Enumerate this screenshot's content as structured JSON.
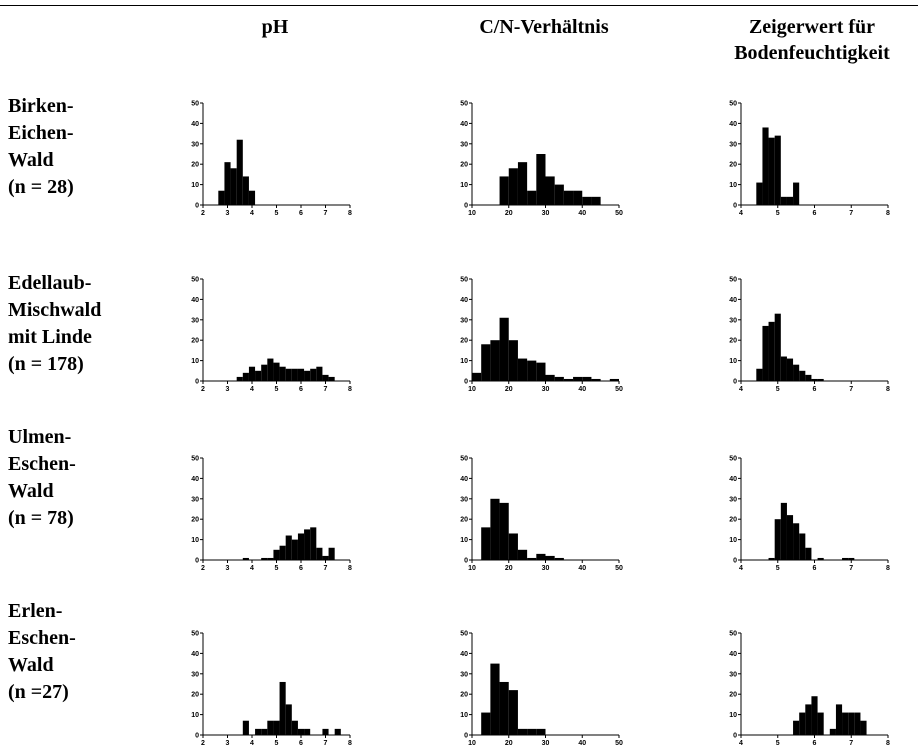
{
  "column_headers": [
    [
      "pH"
    ],
    [
      "C/N-Verhältnis"
    ],
    [
      "Zeigerwert für",
      "Bodenfeuchtigkeit"
    ]
  ],
  "row_labels": [
    [
      "Birken-",
      "Eichen-",
      "Wald",
      "(n = 28)"
    ],
    [
      "Edellaub-",
      "Mischwald",
      "mit Linde",
      "(n = 178)"
    ],
    [
      "Ulmen-",
      "Eschen-",
      "Wald",
      "(n = 78)"
    ],
    [
      "Erlen-",
      "Eschen-",
      "Wald",
      "(n =27)"
    ]
  ],
  "chart_data": [
    {
      "type": "bar",
      "title": "",
      "xlabel": "pH",
      "ylabel": "",
      "forest": "Birken-Eichen-Wald (n = 28)",
      "xlim": [
        2,
        8
      ],
      "ylim": [
        0,
        50
      ],
      "xticks": [
        "2",
        "3",
        "4",
        "5",
        "6",
        "7",
        "8"
      ],
      "yticks": [
        "0",
        "10",
        "20",
        "30",
        "40",
        "50"
      ],
      "bin_width": 0.25,
      "x": [
        2.75,
        3.0,
        3.25,
        3.5,
        3.75,
        4.0
      ],
      "values": [
        7,
        21,
        18,
        32,
        14,
        7
      ]
    },
    {
      "type": "bar",
      "title": "",
      "xlabel": "C/N-Verhältnis",
      "ylabel": "",
      "forest": "Birken-Eichen-Wald (n = 28)",
      "xlim": [
        10,
        50
      ],
      "ylim": [
        0,
        50
      ],
      "xticks": [
        "10",
        "20",
        "30",
        "40",
        "50"
      ],
      "yticks": [
        "0",
        "10",
        "20",
        "30",
        "40",
        "50"
      ],
      "bin_width": 2.5,
      "x": [
        18.75,
        21.25,
        23.75,
        26.25,
        28.75,
        31.25,
        33.75,
        36.25,
        38.75,
        41.25,
        43.75
      ],
      "values": [
        14,
        18,
        21,
        7,
        25,
        14,
        10,
        7,
        7,
        4,
        4
      ]
    },
    {
      "type": "bar",
      "title": "",
      "xlabel": "Zeigerwert für Bodenfeuchtigkeit",
      "ylabel": "",
      "forest": "Birken-Eichen-Wald (n = 28)",
      "xlim": [
        4,
        8
      ],
      "ylim": [
        0,
        50
      ],
      "xticks": [
        "4",
        "5",
        "6",
        "7",
        "8"
      ],
      "yticks": [
        "0",
        "10",
        "20",
        "30",
        "40",
        "50"
      ],
      "bin_width": 0.167,
      "x": [
        4.5,
        4.667,
        4.833,
        5.0,
        5.167,
        5.333,
        5.5
      ],
      "values": [
        11,
        38,
        33,
        34,
        4,
        4,
        11
      ]
    },
    {
      "type": "bar",
      "title": "",
      "xlabel": "pH",
      "ylabel": "",
      "forest": "Edellaub-Mischwald mit Linde (n = 178)",
      "xlim": [
        2,
        8
      ],
      "ylim": [
        0,
        50
      ],
      "xticks": [
        "2",
        "3",
        "4",
        "5",
        "6",
        "7",
        "8"
      ],
      "yticks": [
        "0",
        "10",
        "20",
        "30",
        "40",
        "50"
      ],
      "bin_width": 0.25,
      "x": [
        3.5,
        3.75,
        4.0,
        4.25,
        4.5,
        4.75,
        5.0,
        5.25,
        5.5,
        5.75,
        6.0,
        6.25,
        6.5,
        6.75,
        7.0,
        7.25
      ],
      "values": [
        2,
        4,
        7,
        5,
        8,
        11,
        9,
        7,
        6,
        6,
        6,
        5,
        6,
        7,
        3,
        2
      ]
    },
    {
      "type": "bar",
      "title": "",
      "xlabel": "C/N-Verhältnis",
      "ylabel": "",
      "forest": "Edellaub-Mischwald mit Linde (n = 178)",
      "xlim": [
        10,
        50
      ],
      "ylim": [
        0,
        50
      ],
      "xticks": [
        "10",
        "20",
        "30",
        "40",
        "50"
      ],
      "yticks": [
        "0",
        "10",
        "20",
        "30",
        "40",
        "50"
      ],
      "bin_width": 2.5,
      "x": [
        11.25,
        13.75,
        16.25,
        18.75,
        21.25,
        23.75,
        26.25,
        28.75,
        31.25,
        33.75,
        36.25,
        38.75,
        41.25,
        43.75,
        46.25,
        48.75
      ],
      "values": [
        4,
        18,
        20,
        31,
        20,
        11,
        10,
        9,
        3,
        2,
        1,
        2,
        2,
        1,
        0,
        1
      ]
    },
    {
      "type": "bar",
      "title": "",
      "xlabel": "Zeigerwert für Bodenfeuchtigkeit",
      "ylabel": "",
      "forest": "Edellaub-Mischwald mit Linde (n = 178)",
      "xlim": [
        4,
        8
      ],
      "ylim": [
        0,
        50
      ],
      "xticks": [
        "4",
        "5",
        "6",
        "7",
        "8"
      ],
      "yticks": [
        "0",
        "10",
        "20",
        "30",
        "40",
        "50"
      ],
      "bin_width": 0.167,
      "x": [
        4.5,
        4.667,
        4.833,
        5.0,
        5.167,
        5.333,
        5.5,
        5.667,
        5.833,
        6.0,
        6.167
      ],
      "values": [
        6,
        27,
        29,
        33,
        12,
        11,
        8,
        5,
        3,
        1,
        1
      ]
    },
    {
      "type": "bar",
      "title": "",
      "xlabel": "pH",
      "ylabel": "",
      "forest": "Ulmen-Eschen-Wald (n = 78)",
      "xlim": [
        2,
        8
      ],
      "ylim": [
        0,
        50
      ],
      "xticks": [
        "2",
        "3",
        "4",
        "5",
        "6",
        "7",
        "8"
      ],
      "yticks": [
        "0",
        "10",
        "20",
        "30",
        "40",
        "50"
      ],
      "bin_width": 0.25,
      "x": [
        3.75,
        4.5,
        4.75,
        5.0,
        5.25,
        5.5,
        5.75,
        6.0,
        6.25,
        6.5,
        6.75,
        7.0,
        7.25
      ],
      "values": [
        1,
        1,
        1,
        5,
        7,
        12,
        10,
        13,
        15,
        16,
        6,
        2,
        6
      ]
    },
    {
      "type": "bar",
      "title": "",
      "xlabel": "C/N-Verhältnis",
      "ylabel": "",
      "forest": "Ulmen-Eschen-Wald (n = 78)",
      "xlim": [
        10,
        50
      ],
      "ylim": [
        0,
        50
      ],
      "xticks": [
        "10",
        "20",
        "30",
        "40",
        "50"
      ],
      "yticks": [
        "0",
        "10",
        "20",
        "30",
        "40",
        "50"
      ],
      "bin_width": 2.5,
      "x": [
        13.75,
        16.25,
        18.75,
        21.25,
        23.75,
        26.25,
        28.75,
        31.25,
        33.75
      ],
      "values": [
        16,
        30,
        28,
        13,
        5,
        1,
        3,
        2,
        1
      ]
    },
    {
      "type": "bar",
      "title": "",
      "xlabel": "Zeigerwert für Bodenfeuchtigkeit",
      "ylabel": "",
      "forest": "Ulmen-Eschen-Wald (n = 78)",
      "xlim": [
        4,
        8
      ],
      "ylim": [
        0,
        50
      ],
      "xticks": [
        "4",
        "5",
        "6",
        "7",
        "8"
      ],
      "yticks": [
        "0",
        "10",
        "20",
        "30",
        "40",
        "50"
      ],
      "bin_width": 0.167,
      "x": [
        4.833,
        5.0,
        5.167,
        5.333,
        5.5,
        5.667,
        5.833,
        6.167,
        6.833,
        7.0
      ],
      "values": [
        1,
        20,
        28,
        22,
        18,
        13,
        6,
        1,
        1,
        1
      ]
    },
    {
      "type": "bar",
      "title": "",
      "xlabel": "pH",
      "ylabel": "",
      "forest": "Erlen-Eschen-Wald (n =27)",
      "xlim": [
        2,
        8
      ],
      "ylim": [
        0,
        50
      ],
      "xticks": [
        "2",
        "3",
        "4",
        "5",
        "6",
        "7",
        "8"
      ],
      "yticks": [
        "0",
        "10",
        "20",
        "30",
        "40",
        "50"
      ],
      "bin_width": 0.25,
      "x": [
        3.75,
        4.25,
        4.5,
        4.75,
        5.0,
        5.25,
        5.5,
        5.75,
        6.0,
        6.25,
        7.0,
        7.5
      ],
      "values": [
        7,
        3,
        3,
        7,
        7,
        26,
        15,
        7,
        3,
        3,
        3,
        3
      ]
    },
    {
      "type": "bar",
      "title": "",
      "xlabel": "C/N-Verhältnis",
      "ylabel": "",
      "forest": "Erlen-Eschen-Wald (n =27)",
      "xlim": [
        10,
        50
      ],
      "ylim": [
        0,
        50
      ],
      "xticks": [
        "10",
        "20",
        "30",
        "40",
        "50"
      ],
      "yticks": [
        "0",
        "10",
        "20",
        "30",
        "40",
        "50"
      ],
      "bin_width": 2.5,
      "x": [
        13.75,
        16.25,
        18.75,
        21.25,
        23.75,
        26.25,
        28.75
      ],
      "values": [
        11,
        35,
        26,
        22,
        3,
        3,
        3
      ]
    },
    {
      "type": "bar",
      "title": "",
      "xlabel": "Zeigerwert für Bodenfeuchtigkeit",
      "ylabel": "",
      "forest": "Erlen-Eschen-Wald (n =27)",
      "xlim": [
        4,
        8
      ],
      "ylim": [
        0,
        50
      ],
      "xticks": [
        "4",
        "5",
        "6",
        "7",
        "8"
      ],
      "yticks": [
        "0",
        "10",
        "20",
        "30",
        "40",
        "50"
      ],
      "bin_width": 0.167,
      "x": [
        5.5,
        5.667,
        5.833,
        6.0,
        6.167,
        6.5,
        6.667,
        6.833,
        7.0,
        7.167,
        7.333
      ],
      "values": [
        7,
        11,
        15,
        19,
        11,
        3,
        15,
        11,
        11,
        11,
        7
      ]
    }
  ]
}
